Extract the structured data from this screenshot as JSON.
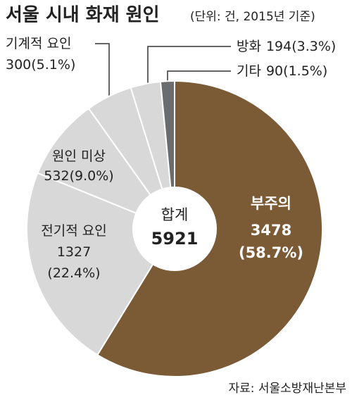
{
  "chart_data": {
    "type": "pie",
    "title": "서울 시내 화재 원인",
    "subtitle": "(단위: 건, 2015년 기준)",
    "categories": [
      "부주의",
      "전기적 요인",
      "원인 미상",
      "기계적 요인",
      "방화",
      "기타"
    ],
    "values": [
      3478,
      1327,
      532,
      300,
      194,
      90
    ],
    "percent_labels": [
      "(58.7%)",
      "(22.4%)",
      "(9.0%)",
      "(5.1%)",
      "(3.3%)",
      "(1.5%)"
    ],
    "colors": [
      "#7b5a36",
      "#d8d8d8",
      "#d8d8d8",
      "#d8d8d8",
      "#d8d8d8",
      "#6b6c6e"
    ],
    "total_label": "합계",
    "total": 5921,
    "source": "자료: 서울소방재난본부"
  }
}
